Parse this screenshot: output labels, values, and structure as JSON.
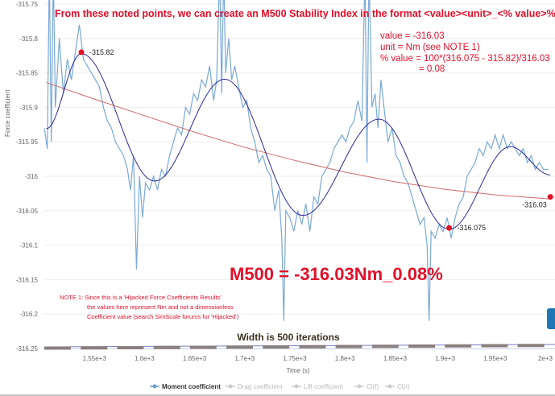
{
  "chart_data": {
    "type": "line",
    "xlabel": "Time (s)",
    "ylabel": "Force coefficient",
    "xlim": [
      1500,
      2005
    ],
    "ylim": [
      -316.25,
      -315.75
    ],
    "x_ticks": [
      "1.55e+3",
      "1.6e+3",
      "1.65e+3",
      "1.7e+3",
      "1.75e+3",
      "1.8e+3",
      "1.85e+3",
      "1.9e+3",
      "1.95e+3",
      "2e+3"
    ],
    "x_tick_values": [
      1550,
      1600,
      1650,
      1700,
      1750,
      1800,
      1850,
      1900,
      1950,
      2000
    ],
    "y_ticks": [
      "-315.75",
      "-315.8",
      "-315.85",
      "-315.9",
      "-315.95",
      "-316",
      "-316.05",
      "-316.1",
      "-316.15",
      "-316.2",
      "-316.25"
    ],
    "y_tick_values": [
      -315.75,
      -315.8,
      -315.85,
      -315.9,
      -315.95,
      -316,
      -316.05,
      -316.1,
      -316.15,
      -316.2,
      -316.25
    ],
    "grid": true,
    "legend_placement": "bottom",
    "legend": [
      {
        "name": "Moment coefficient",
        "active": true
      },
      {
        "name": "Drag coefficient",
        "active": false
      },
      {
        "name": "Lift coefficient",
        "active": false
      },
      {
        "name": "Cl(f)",
        "active": false
      },
      {
        "name": "Cl(r)",
        "active": false
      }
    ],
    "colors": {
      "raw": "#7aa9d6",
      "fit": "#2a2a9a",
      "trend": "#d06a6a",
      "marker": "#e01020",
      "annotation": "#e0102a",
      "band": "#8a8080"
    },
    "series": [
      {
        "name": "Moment coefficient",
        "points": [
          [
            1500,
            -315.93
          ],
          [
            1503,
            -315.96
          ],
          [
            1505,
            -315.7
          ],
          [
            1507,
            -315.95
          ],
          [
            1509,
            -315.7
          ],
          [
            1511,
            -315.9
          ],
          [
            1515,
            -315.8
          ],
          [
            1519,
            -315.88
          ],
          [
            1523,
            -315.83
          ],
          [
            1527,
            -315.86
          ],
          [
            1531,
            -315.82
          ],
          [
            1535,
            -315.78
          ],
          [
            1539,
            -315.83
          ],
          [
            1543,
            -315.84
          ],
          [
            1547,
            -315.85
          ],
          [
            1551,
            -315.86
          ],
          [
            1555,
            -315.87
          ],
          [
            1559,
            -315.9
          ],
          [
            1563,
            -315.92
          ],
          [
            1567,
            -315.93
          ],
          [
            1571,
            -315.95
          ],
          [
            1575,
            -315.96
          ],
          [
            1579,
            -315.97
          ],
          [
            1583,
            -315.99
          ],
          [
            1586,
            -316.02
          ],
          [
            1589,
            -315.97
          ],
          [
            1592,
            -316.135
          ],
          [
            1595,
            -316.0
          ],
          [
            1598,
            -316.06
          ],
          [
            1601,
            -316.01
          ],
          [
            1605,
            -316.02
          ],
          [
            1609,
            -316.0
          ],
          [
            1613,
            -316.02
          ],
          [
            1617,
            -315.99
          ],
          [
            1621,
            -316.0
          ],
          [
            1625,
            -315.97
          ],
          [
            1629,
            -315.95
          ],
          [
            1633,
            -315.93
          ],
          [
            1637,
            -315.94
          ],
          [
            1641,
            -315.9
          ],
          [
            1645,
            -315.91
          ],
          [
            1649,
            -315.88
          ],
          [
            1653,
            -315.89
          ],
          [
            1657,
            -315.86
          ],
          [
            1661,
            -315.87
          ],
          [
            1665,
            -315.84
          ],
          [
            1669,
            -315.89
          ],
          [
            1672,
            -315.86
          ],
          [
            1675,
            -315.7
          ],
          [
            1677,
            -315.88
          ],
          [
            1679,
            -315.7
          ],
          [
            1681,
            -315.85
          ],
          [
            1684,
            -315.8
          ],
          [
            1687,
            -315.86
          ],
          [
            1690,
            -315.84
          ],
          [
            1694,
            -315.87
          ],
          [
            1698,
            -315.9
          ],
          [
            1702,
            -315.89
          ],
          [
            1706,
            -315.93
          ],
          [
            1710,
            -315.95
          ],
          [
            1714,
            -315.98
          ],
          [
            1718,
            -315.97
          ],
          [
            1722,
            -315.99
          ],
          [
            1726,
            -316.0
          ],
          [
            1730,
            -316.05
          ],
          [
            1734,
            -316.02
          ],
          [
            1737,
            -316.09
          ],
          [
            1739,
            -316.21
          ],
          [
            1741,
            -316.05
          ],
          [
            1745,
            -316.06
          ],
          [
            1749,
            -316.08
          ],
          [
            1753,
            -316.05
          ],
          [
            1757,
            -316.07
          ],
          [
            1761,
            -316.04
          ],
          [
            1765,
            -316.08
          ],
          [
            1769,
            -316.03
          ],
          [
            1773,
            -316.04
          ],
          [
            1777,
            -316.0
          ],
          [
            1781,
            -315.99
          ],
          [
            1785,
            -315.98
          ],
          [
            1789,
            -315.96
          ],
          [
            1793,
            -315.95
          ],
          [
            1797,
            -315.94
          ],
          [
            1801,
            -315.95
          ],
          [
            1805,
            -315.93
          ],
          [
            1809,
            -315.92
          ],
          [
            1813,
            -315.89
          ],
          [
            1817,
            -315.92
          ],
          [
            1820,
            -315.7
          ],
          [
            1822,
            -315.98
          ],
          [
            1824,
            -315.7
          ],
          [
            1827,
            -315.9
          ],
          [
            1830,
            -315.88
          ],
          [
            1833,
            -315.93
          ],
          [
            1836,
            -315.86
          ],
          [
            1839,
            -315.9
          ],
          [
            1843,
            -315.95
          ],
          [
            1847,
            -315.93
          ],
          [
            1851,
            -315.97
          ],
          [
            1855,
            -315.98
          ],
          [
            1859,
            -316.0
          ],
          [
            1863,
            -316.01
          ],
          [
            1867,
            -316.03
          ],
          [
            1871,
            -316.05
          ],
          [
            1875,
            -316.07
          ],
          [
            1879,
            -316.06
          ],
          [
            1882,
            -316.1
          ],
          [
            1884,
            -316.21
          ],
          [
            1886,
            -316.08
          ],
          [
            1890,
            -316.09
          ],
          [
            1894,
            -316.07
          ],
          [
            1898,
            -316.08
          ],
          [
            1902,
            -316.06
          ],
          [
            1906,
            -316.09
          ],
          [
            1910,
            -316.06
          ],
          [
            1914,
            -316.04
          ],
          [
            1918,
            -316.03
          ],
          [
            1922,
            -316.0
          ],
          [
            1926,
            -315.99
          ],
          [
            1930,
            -315.98
          ],
          [
            1934,
            -315.96
          ],
          [
            1938,
            -315.97
          ],
          [
            1942,
            -315.95
          ],
          [
            1946,
            -315.96
          ],
          [
            1950,
            -315.94
          ],
          [
            1954,
            -315.96
          ],
          [
            1958,
            -315.94
          ],
          [
            1962,
            -315.96
          ],
          [
            1966,
            -315.95
          ],
          [
            1970,
            -315.96
          ],
          [
            1974,
            -315.97
          ],
          [
            1978,
            -315.96
          ],
          [
            1982,
            -315.98
          ],
          [
            1986,
            -315.97
          ],
          [
            1990,
            -315.99
          ],
          [
            1994,
            -315.98
          ],
          [
            1998,
            -315.99
          ],
          [
            2003,
            -315.99
          ]
        ]
      }
    ],
    "fit_extrema": [
      [
        1502,
        -315.931
      ],
      [
        1537,
        -315.822
      ],
      [
        1610,
        -316.007
      ],
      [
        1680,
        -315.859
      ],
      [
        1758,
        -316.057
      ],
      [
        1834,
        -315.917
      ],
      [
        1904,
        -316.077
      ],
      [
        1965,
        -315.957
      ],
      [
        2005,
        -315.998
      ]
    ],
    "trend_points": [
      [
        1502,
        -315.864
      ],
      [
        1550,
        -315.888
      ],
      [
        1600,
        -315.912
      ],
      [
        1650,
        -315.936
      ],
      [
        1700,
        -315.958
      ],
      [
        1750,
        -315.977
      ],
      [
        1800,
        -315.994
      ],
      [
        1850,
        -316.008
      ],
      [
        1900,
        -316.019
      ],
      [
        1950,
        -316.027
      ],
      [
        2005,
        -316.033
      ]
    ],
    "marked_points": [
      {
        "x": 1537,
        "y": -315.82,
        "label": "-315.82"
      },
      {
        "x": 1904,
        "y": -316.075,
        "label": "-316.075"
      },
      {
        "x": 2005,
        "y": -316.03,
        "label": "-316.03"
      }
    ],
    "window_band": {
      "label": "Width is 500 iterations",
      "from": 1500,
      "to": 2005
    }
  },
  "annotations": {
    "headline": "From these noted points, we can create an M500 Stability Index in the format <value><unit>_<% value>%",
    "calc": [
      "value = -316.03",
      "unit = Nm  (see NOTE 1)",
      "% value = 100*(316.075 - 315.82)/316.03",
      "= 0.08"
    ],
    "result": "M500 = -316.03Nm_0.08%",
    "note": [
      "NOTE 1: Since this is a 'Hijacked Force Coefficients Results'",
      "the values here represent Nm and not a dimensionless",
      "Coefficient value (search SimScale forums for 'Hijacked')"
    ]
  }
}
